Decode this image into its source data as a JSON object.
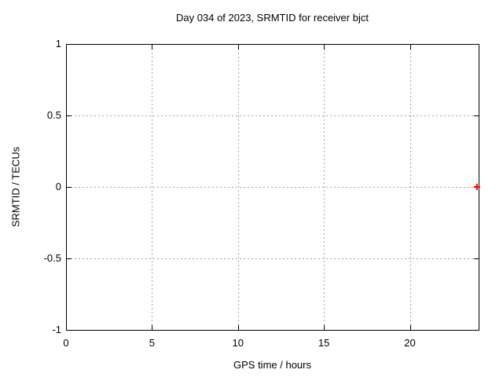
{
  "chart_data": {
    "type": "scatter",
    "title": "Day 034 of 2023, SRMTID for receiver bjct",
    "xlabel": "GPS time / hours",
    "ylabel": "SRMTID / TECUs",
    "xlim": [
      0,
      24
    ],
    "ylim": [
      -1,
      1
    ],
    "xticks": [
      0,
      5,
      10,
      15,
      20
    ],
    "xtick_labels": [
      "0",
      "5",
      "10",
      "15",
      "20"
    ],
    "yticks": [
      1,
      0.5,
      0,
      -0.5,
      -1
    ],
    "ytick_labels": [
      "1",
      "0.5",
      "0",
      "-0.5",
      "-1"
    ],
    "grid": true,
    "legend": "none",
    "series": [
      {
        "name": "SRMTID",
        "marker": "plus",
        "color": "#ff0000",
        "points": [
          {
            "x": 23.9,
            "y": 0
          }
        ]
      }
    ],
    "colors": {
      "border": "#000000",
      "grid": "#a0a0a0",
      "text": "#000000",
      "background": "#ffffff"
    }
  }
}
